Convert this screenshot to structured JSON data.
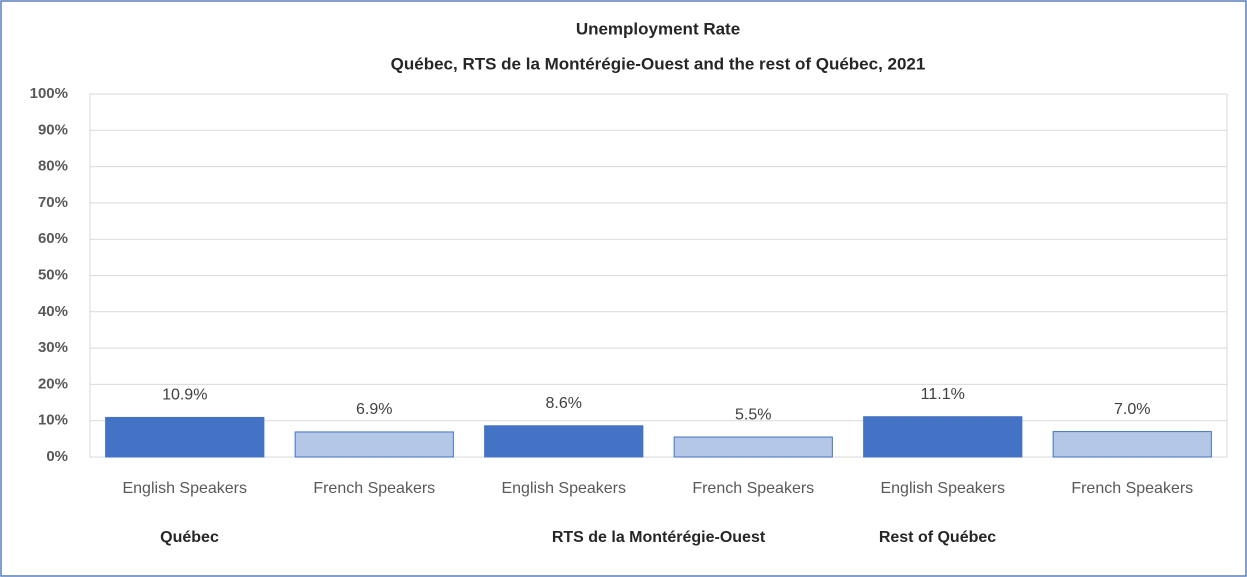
{
  "chart_data": {
    "type": "bar",
    "title": "Unemployment Rate",
    "subtitle": "Québec, RTS de la Montérégie-Ouest and the rest of Québec, 2021",
    "categories": [
      "Québec",
      "RTS de la Montérégie-Ouest",
      "Rest of Québec"
    ],
    "series": [
      {
        "name": "English Speakers",
        "color": "#4472c4",
        "values": [
          10.9,
          8.6,
          11.1
        ],
        "value_labels": [
          "10.9%",
          "8.6%",
          "11.1%"
        ]
      },
      {
        "name": "French Speakers",
        "color": "#b4c7e7",
        "values": [
          6.9,
          5.5,
          7.0
        ],
        "value_labels": [
          "6.9%",
          "5.5%",
          "7.0%"
        ]
      }
    ],
    "ylim": [
      0,
      100
    ],
    "yticks": [
      {
        "value": 0,
        "label": "0%"
      },
      {
        "value": 10,
        "label": "10%"
      },
      {
        "value": 20,
        "label": "20%"
      },
      {
        "value": 30,
        "label": "30%"
      },
      {
        "value": 40,
        "label": "40%"
      },
      {
        "value": 50,
        "label": "50%"
      },
      {
        "value": 60,
        "label": "60%"
      },
      {
        "value": 70,
        "label": "70%"
      },
      {
        "value": 80,
        "label": "80%"
      },
      {
        "value": 90,
        "label": "90%"
      },
      {
        "value": 100,
        "label": "100%"
      }
    ],
    "grid": true
  }
}
